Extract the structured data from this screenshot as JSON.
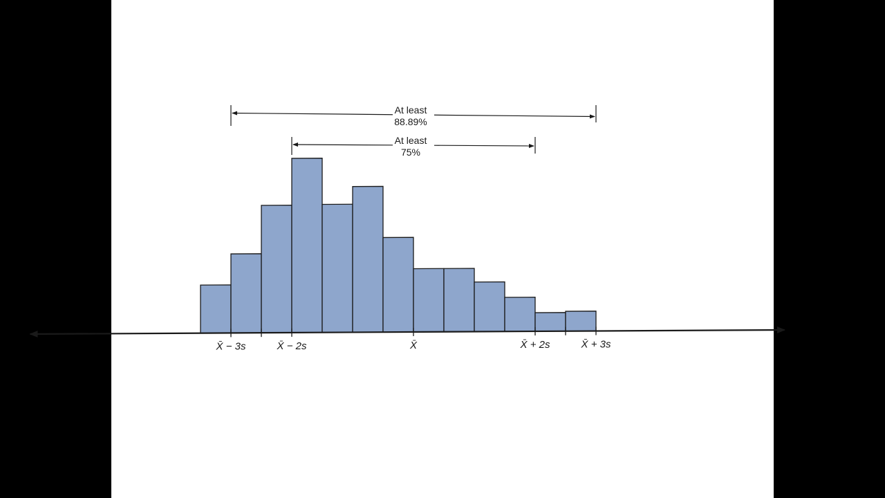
{
  "colors": {
    "bar_fill": "#8ea6cc",
    "bar_stroke": "#1a1a1a",
    "frame": "#000000",
    "slide_bg": "#ffffff"
  },
  "chart_data": {
    "type": "bar",
    "values": [
      15.5,
      25.5,
      41.1,
      56.2,
      41.3,
      47.0,
      30.5,
      20.4,
      20.4,
      16.0,
      11.0,
      6.0,
      6.4
    ],
    "bin_edges_in_s": [
      -3.5,
      -3.0,
      -2.5,
      -2.0,
      -1.5,
      -1.0,
      -0.5,
      0.0,
      0.5,
      1.0,
      1.5,
      2.0,
      2.5,
      3.0
    ],
    "xlim_in_s": [
      -6.3,
      6.1
    ],
    "ylim": [
      0,
      60
    ],
    "ticks_in_s": [
      -3,
      -2.5,
      -2,
      0,
      2,
      2.5,
      3
    ],
    "tick_labels": [
      {
        "s": -3,
        "text": "X̄ − 3s"
      },
      {
        "s": -2,
        "text": "X̄ − 2s"
      },
      {
        "s": 0,
        "text": "X̄"
      },
      {
        "s": 2,
        "text": "X̄ + 2s"
      },
      {
        "s": 3,
        "text": "X̄ + 3s"
      }
    ],
    "annotations": [
      {
        "from_s": -3,
        "to_s": 3,
        "line1": "At least",
        "line2": "88.89%"
      },
      {
        "from_s": -2,
        "to_s": 2,
        "line1": "At least",
        "line2": "75%"
      }
    ],
    "title": "",
    "xlabel": "",
    "ylabel": "",
    "grid": false,
    "legend": "none"
  }
}
